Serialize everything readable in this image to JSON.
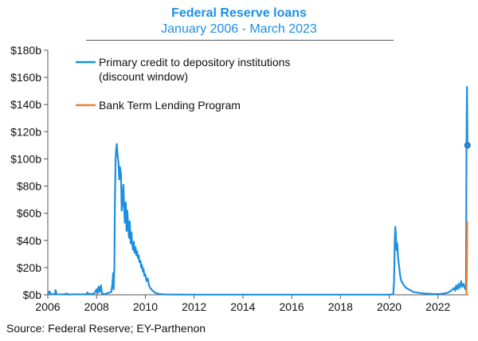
{
  "header": {
    "title": "Federal Reserve loans",
    "subtitle": "January 2006 - March 2023"
  },
  "footer": {
    "source": "Source: Federal Reserve; EY-Parthenon"
  },
  "chart_data": {
    "type": "line",
    "title": "Federal Reserve loans",
    "subtitle": "January 2006 - March 2023",
    "xlabel": "",
    "ylabel": "",
    "xlim": [
      2006,
      2023.25
    ],
    "ylim": [
      0,
      180
    ],
    "y_ticks": [
      0,
      20,
      40,
      60,
      80,
      100,
      120,
      140,
      160,
      180
    ],
    "y_tick_labels": [
      "$0b",
      "$20b",
      "$40b",
      "$60b",
      "$80b",
      "$100b",
      "$120b",
      "$140b",
      "$160b",
      "$180b"
    ],
    "x_ticks": [
      2006,
      2008,
      2010,
      2012,
      2014,
      2016,
      2018,
      2020,
      2022
    ],
    "x_tick_labels": [
      "2006",
      "2008",
      "2010",
      "2012",
      "2014",
      "2016",
      "2018",
      "2020",
      "2022"
    ],
    "grid": false,
    "legend_position": "top-left",
    "colors": {
      "primary": "#1d8fe1",
      "btlp": "#ed7d31",
      "axis": "#555555"
    },
    "series": [
      {
        "name": "Primary credit to depository institutions (discount window)",
        "legend_lines": [
          "Primary credit to depository institutions",
          "(discount window)"
        ],
        "color": "#1d8fe1",
        "points": [
          [
            2006.0,
            0.3
          ],
          [
            2006.08,
            2.5
          ],
          [
            2006.12,
            0.3
          ],
          [
            2006.3,
            0.6
          ],
          [
            2006.32,
            3.5
          ],
          [
            2006.36,
            0.4
          ],
          [
            2006.6,
            0.3
          ],
          [
            2006.8,
            0.8
          ],
          [
            2006.84,
            0.2
          ],
          [
            2007.0,
            0.3
          ],
          [
            2007.3,
            0.4
          ],
          [
            2007.6,
            0.3
          ],
          [
            2007.62,
            1.8
          ],
          [
            2007.68,
            0.5
          ],
          [
            2007.9,
            0.8
          ],
          [
            2008.0,
            4.0
          ],
          [
            2008.03,
            1.0
          ],
          [
            2008.08,
            6.0
          ],
          [
            2008.12,
            2.0
          ],
          [
            2008.18,
            7.0
          ],
          [
            2008.22,
            1.0
          ],
          [
            2008.35,
            0.5
          ],
          [
            2008.45,
            1.2
          ],
          [
            2008.6,
            2.0
          ],
          [
            2008.65,
            8.0
          ],
          [
            2008.68,
            16.0
          ],
          [
            2008.7,
            4.0
          ],
          [
            2008.73,
            20.0
          ],
          [
            2008.75,
            65.0
          ],
          [
            2008.78,
            100.0
          ],
          [
            2008.8,
            106.0
          ],
          [
            2008.83,
            111.0
          ],
          [
            2008.86,
            103.0
          ],
          [
            2008.9,
            97.0
          ],
          [
            2008.93,
            85.0
          ],
          [
            2008.96,
            94.0
          ],
          [
            2009.0,
            89.0
          ],
          [
            2009.03,
            62.0
          ],
          [
            2009.06,
            67.0
          ],
          [
            2009.1,
            81.0
          ],
          [
            2009.13,
            64.0
          ],
          [
            2009.16,
            53.0
          ],
          [
            2009.2,
            68.0
          ],
          [
            2009.23,
            47.0
          ],
          [
            2009.26,
            62.0
          ],
          [
            2009.3,
            49.0
          ],
          [
            2009.33,
            42.0
          ],
          [
            2009.36,
            54.0
          ],
          [
            2009.4,
            38.0
          ],
          [
            2009.43,
            46.0
          ],
          [
            2009.46,
            37.0
          ],
          [
            2009.5,
            33.0
          ],
          [
            2009.53,
            39.0
          ],
          [
            2009.56,
            31.0
          ],
          [
            2009.6,
            35.0
          ],
          [
            2009.63,
            29.0
          ],
          [
            2009.66,
            32.0
          ],
          [
            2009.7,
            27.0
          ],
          [
            2009.73,
            29.0
          ],
          [
            2009.76,
            24.0
          ],
          [
            2009.8,
            25.0
          ],
          [
            2009.83,
            20.0
          ],
          [
            2009.86,
            22.0
          ],
          [
            2009.9,
            17.0
          ],
          [
            2009.93,
            19.0
          ],
          [
            2009.96,
            14.0
          ],
          [
            2010.0,
            15.0
          ],
          [
            2010.05,
            10.0
          ],
          [
            2010.1,
            12.0
          ],
          [
            2010.15,
            7.0
          ],
          [
            2010.2,
            5.0
          ],
          [
            2010.3,
            3.0
          ],
          [
            2010.4,
            1.5
          ],
          [
            2010.5,
            1.0
          ],
          [
            2010.6,
            0.5
          ],
          [
            2010.8,
            0.3
          ],
          [
            2011.0,
            0.2
          ],
          [
            2012.0,
            0.1
          ],
          [
            2013.0,
            0.1
          ],
          [
            2014.0,
            0.1
          ],
          [
            2015.0,
            0.1
          ],
          [
            2016.0,
            0.1
          ],
          [
            2017.0,
            0.1
          ],
          [
            2018.0,
            0.1
          ],
          [
            2019.0,
            0.1
          ],
          [
            2019.9,
            0.1
          ],
          [
            2020.1,
            0.2
          ],
          [
            2020.17,
            1.0
          ],
          [
            2020.2,
            10.0
          ],
          [
            2020.23,
            40.0
          ],
          [
            2020.25,
            50.0
          ],
          [
            2020.27,
            45.0
          ],
          [
            2020.3,
            33.0
          ],
          [
            2020.33,
            38.0
          ],
          [
            2020.36,
            28.0
          ],
          [
            2020.4,
            22.0
          ],
          [
            2020.45,
            14.0
          ],
          [
            2020.5,
            10.0
          ],
          [
            2020.6,
            7.0
          ],
          [
            2020.7,
            5.0
          ],
          [
            2020.8,
            4.0
          ],
          [
            2020.9,
            3.0
          ],
          [
            2021.0,
            2.0
          ],
          [
            2021.2,
            1.5
          ],
          [
            2021.4,
            1.0
          ],
          [
            2021.6,
            0.8
          ],
          [
            2021.8,
            0.5
          ],
          [
            2022.0,
            0.5
          ],
          [
            2022.2,
            0.8
          ],
          [
            2022.4,
            1.5
          ],
          [
            2022.5,
            2.5
          ],
          [
            2022.6,
            4.0
          ],
          [
            2022.65,
            5.0
          ],
          [
            2022.7,
            3.0
          ],
          [
            2022.75,
            7.0
          ],
          [
            2022.8,
            4.0
          ],
          [
            2022.85,
            8.0
          ],
          [
            2022.9,
            5.0
          ],
          [
            2022.95,
            10.0
          ],
          [
            2023.0,
            6.0
          ],
          [
            2023.05,
            8.0
          ],
          [
            2023.1,
            5.0
          ],
          [
            2023.13,
            4.0
          ],
          [
            2023.15,
            6.0
          ],
          [
            2023.17,
            110.0
          ],
          [
            2023.19,
            153.0
          ],
          [
            2023.21,
            110.0
          ]
        ]
      },
      {
        "name": "Bank Term Lending Program",
        "legend_lines": [
          "Bank Term Lending Program"
        ],
        "color": "#ed7d31",
        "points": [
          [
            2023.17,
            0.0
          ],
          [
            2023.18,
            12.0
          ],
          [
            2023.19,
            25.0
          ],
          [
            2023.2,
            54.0
          ]
        ]
      }
    ],
    "markers": [
      {
        "series": "Primary credit to depository institutions (discount window)",
        "x": 2023.21,
        "y": 110.0
      }
    ]
  }
}
